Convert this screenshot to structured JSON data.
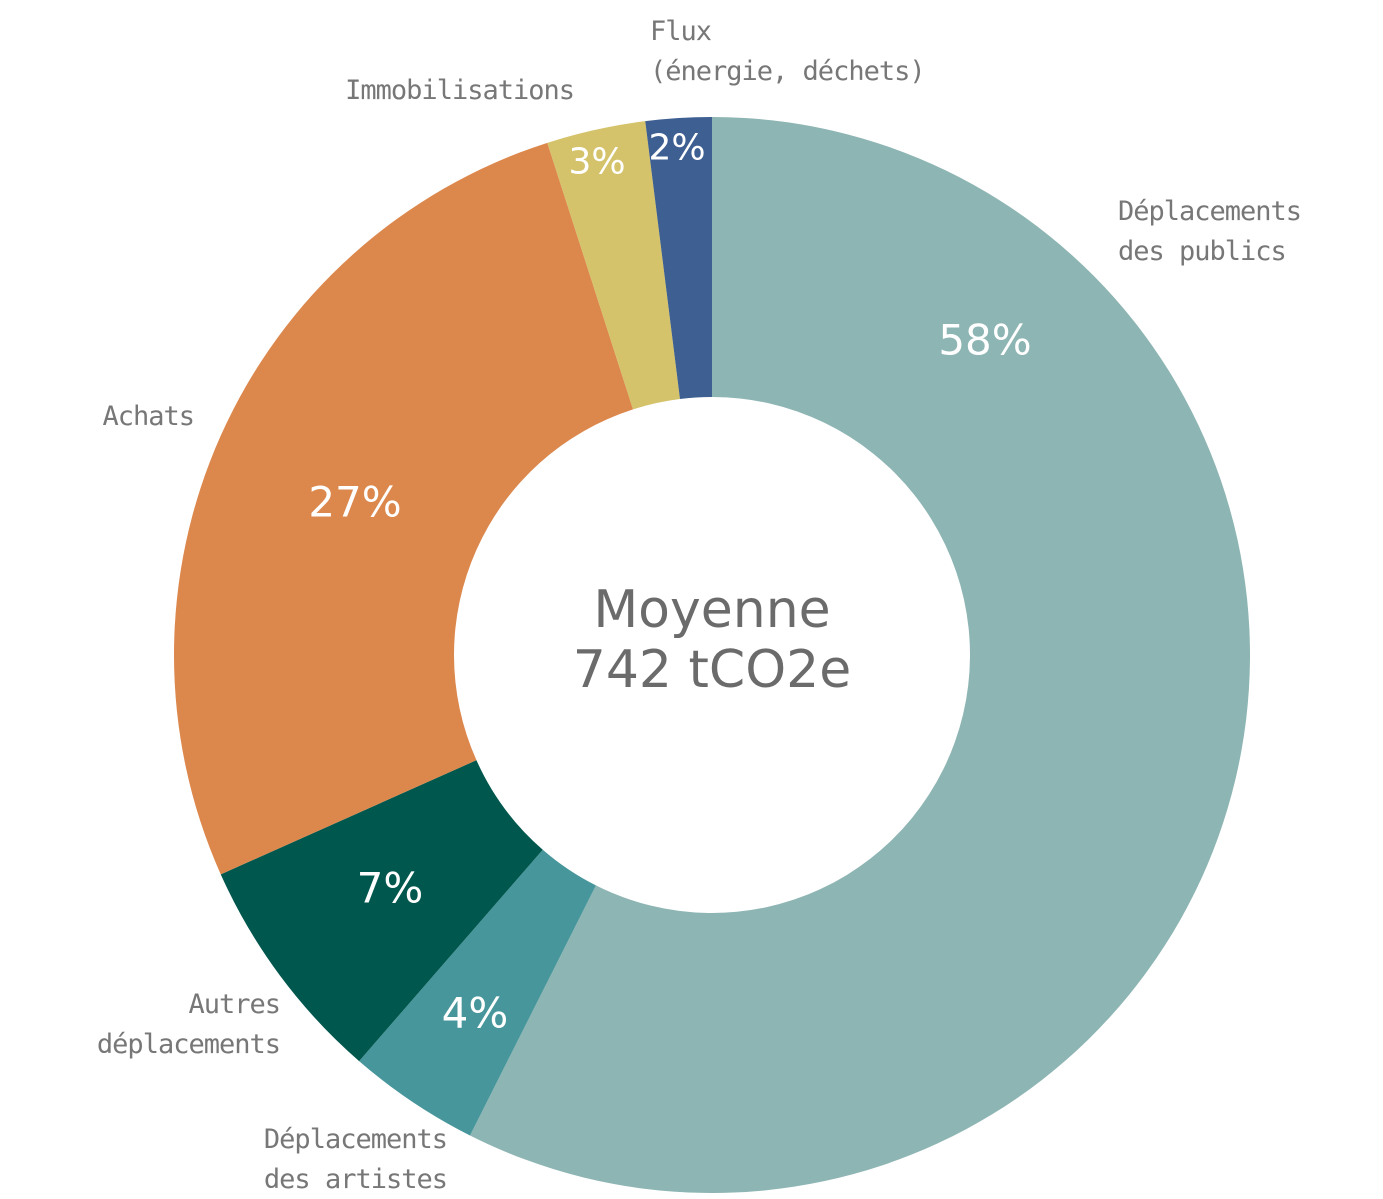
{
  "chart_data": {
    "type": "donut",
    "categories": [
      "Déplacements\ndes publics",
      "Déplacements\ndes artistes",
      "Autres\ndéplacements",
      "Achats",
      "Immobilisations",
      "Flux\n(énergie, déchets)"
    ],
    "values": [
      58,
      4,
      7,
      27,
      3,
      2
    ],
    "value_labels": [
      "58%",
      "4%",
      "7%",
      "27%",
      "3%",
      "2%"
    ],
    "colors": [
      "#8db5b3",
      "#47969b",
      "#00574d",
      "#dc874c",
      "#d4c36a",
      "#3e5f92"
    ],
    "center_text": [
      "Moyenne",
      "742 tCO2e"
    ]
  }
}
